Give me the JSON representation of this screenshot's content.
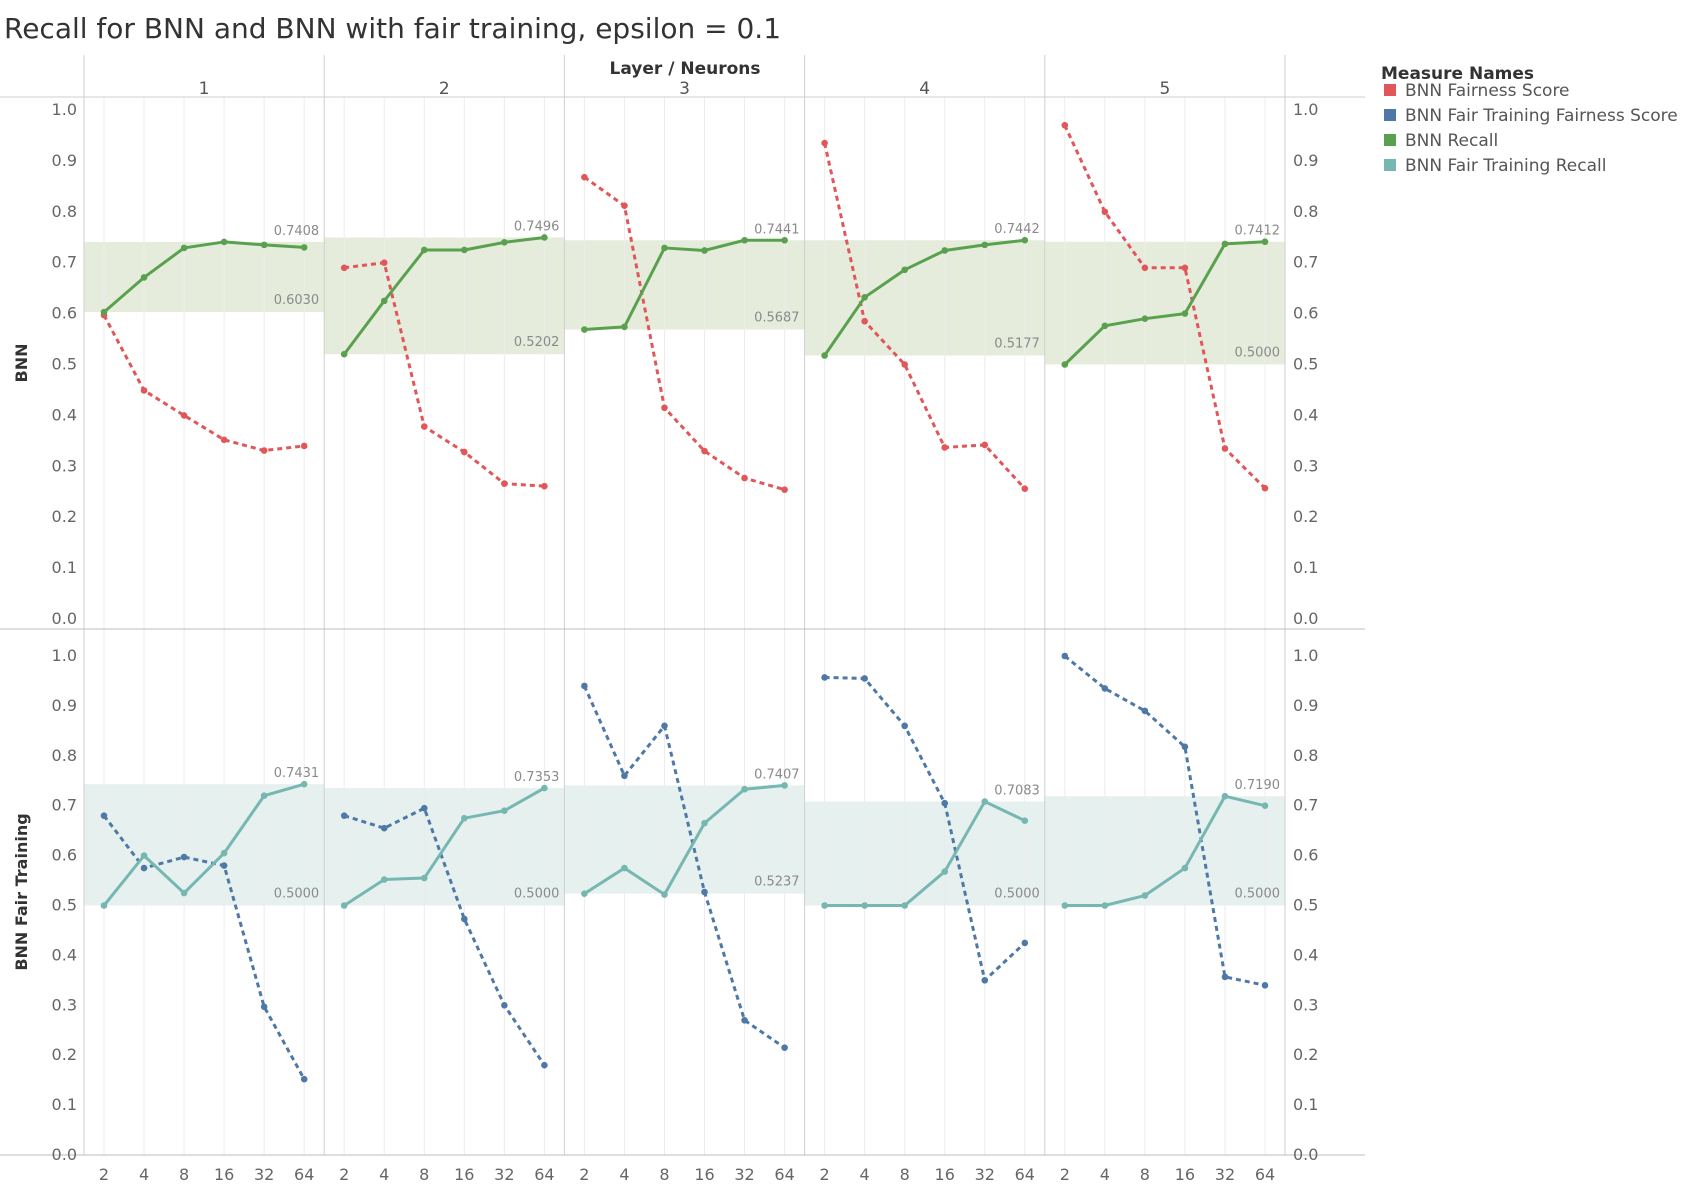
{
  "chart_data": {
    "type": "line",
    "title": "Recall for BNN and BNN with fair training, epsilon = 0.1",
    "column_header": "Layer / Neurons",
    "columns": [
      "1",
      "2",
      "3",
      "4",
      "5"
    ],
    "x_categories": [
      "2",
      "4",
      "8",
      "16",
      "32",
      "64"
    ],
    "ylim": [
      0,
      1
    ],
    "y_ticks": [
      "0.0",
      "0.1",
      "0.2",
      "0.3",
      "0.4",
      "0.5",
      "0.6",
      "0.7",
      "0.8",
      "0.9",
      "1.0"
    ],
    "rows": [
      {
        "label": "BNN",
        "band_color": "#e6ecdc",
        "fairness_series": "BNN Fairness Score",
        "recall_series": "BNN Recall",
        "panels": [
          {
            "fairness": [
              0.597,
              0.449,
              0.4,
              0.352,
              0.331,
              0.34
            ],
            "recall": [
              0.603,
              0.671,
              0.729,
              0.7408,
              0.735,
              0.73
            ],
            "band": [
              0.603,
              0.7408
            ],
            "band_labels": [
              "0.7408",
              "0.6030"
            ]
          },
          {
            "fairness": [
              0.69,
              0.7,
              0.378,
              0.328,
              0.266,
              0.261
            ],
            "recall": [
              0.5202,
              0.625,
              0.725,
              0.725,
              0.74,
              0.7496
            ],
            "band": [
              0.5202,
              0.7496
            ],
            "band_labels": [
              "0.7496",
              "0.5202"
            ]
          },
          {
            "fairness": [
              0.868,
              0.812,
              0.415,
              0.33,
              0.277,
              0.254
            ],
            "recall": [
              0.5687,
              0.574,
              0.729,
              0.724,
              0.7441,
              0.7441
            ],
            "band": [
              0.5687,
              0.7441
            ],
            "band_labels": [
              "0.7441",
              "0.5687"
            ]
          },
          {
            "fairness": [
              0.935,
              0.585,
              0.5,
              0.337,
              0.342,
              0.256
            ],
            "recall": [
              0.5177,
              0.632,
              0.686,
              0.724,
              0.735,
              0.7442
            ],
            "band": [
              0.5177,
              0.7442
            ],
            "band_labels": [
              "0.7442",
              "0.5177"
            ]
          },
          {
            "fairness": [
              0.97,
              0.8,
              0.69,
              0.69,
              0.335,
              0.257
            ],
            "recall": [
              0.5,
              0.576,
              0.59,
              0.6,
              0.737,
              0.7412
            ],
            "band": [
              0.5,
              0.7412
            ],
            "band_labels": [
              "0.7412",
              "0.5000"
            ]
          }
        ]
      },
      {
        "label": "BNN Fair Training",
        "band_color": "#e6f0ee",
        "fairness_series": "BNN Fair Training Fairness Score",
        "recall_series": "BNN Fair Training Recall",
        "panels": [
          {
            "fairness": [
              0.68,
              0.575,
              0.597,
              0.58,
              0.297,
              0.152
            ],
            "recall": [
              0.5,
              0.6,
              0.525,
              0.605,
              0.72,
              0.7431
            ],
            "band": [
              0.5,
              0.7431
            ],
            "band_labels": [
              "0.7431",
              "0.5000"
            ]
          },
          {
            "fairness": [
              0.68,
              0.655,
              0.695,
              0.473,
              0.3,
              0.18
            ],
            "recall": [
              0.5,
              0.552,
              0.555,
              0.675,
              0.69,
              0.7353
            ],
            "band": [
              0.5,
              0.7353
            ],
            "band_labels": [
              "0.7353",
              "0.5000"
            ]
          },
          {
            "fairness": [
              0.94,
              0.76,
              0.86,
              0.527,
              0.27,
              0.215
            ],
            "recall": [
              0.5237,
              0.575,
              0.522,
              0.665,
              0.733,
              0.7407
            ],
            "band": [
              0.5237,
              0.7407
            ],
            "band_labels": [
              "0.7407",
              "0.5237"
            ]
          },
          {
            "fairness": [
              0.957,
              0.955,
              0.86,
              0.705,
              0.35,
              0.425
            ],
            "recall": [
              0.5,
              0.5,
              0.5,
              0.568,
              0.7083,
              0.67
            ],
            "band": [
              0.5,
              0.7083
            ],
            "band_labels": [
              "0.7083",
              "0.5000"
            ]
          },
          {
            "fairness": [
              1.0,
              0.935,
              0.89,
              0.818,
              0.357,
              0.34
            ],
            "recall": [
              0.5,
              0.5,
              0.52,
              0.575,
              0.719,
              0.7
            ],
            "band": [
              0.5,
              0.719
            ],
            "band_labels": [
              "0.7190",
              "0.5000"
            ]
          }
        ]
      }
    ],
    "legend": {
      "title": "Measure Names",
      "placement": "right",
      "items": [
        {
          "name": "BNN Fairness Score",
          "color": "#e15759"
        },
        {
          "name": "BNN Fair Training Fairness Score",
          "color": "#4e79a7"
        },
        {
          "name": "BNN Recall",
          "color": "#59a14f"
        },
        {
          "name": "BNN Fair Training Recall",
          "color": "#76b7b2"
        }
      ]
    },
    "grid": true
  }
}
